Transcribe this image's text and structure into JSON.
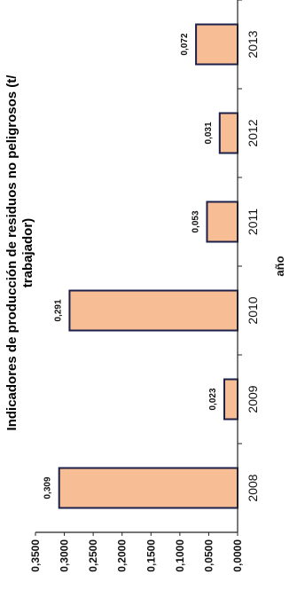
{
  "chart_data": {
    "type": "bar",
    "title": "Indicadores de producción de residuos no peligrosos (t/ trabajador)",
    "title_lines": [
      "Indicadores de producción de residuos no peligrosos (t/",
      "trabajador)"
    ],
    "xlabel": "año",
    "ylabel": "",
    "categories": [
      "2008",
      "2009",
      "2010",
      "2011",
      "2012",
      "2013"
    ],
    "values": [
      0.309,
      0.023,
      0.291,
      0.053,
      0.031,
      0.072
    ],
    "value_labels": [
      "0,309",
      "0,023",
      "0,291",
      "0,053",
      "0,031",
      "0,072"
    ],
    "y_ticks": [
      "0,0000",
      "0,0500",
      "0,1000",
      "0,1500",
      "0,2000",
      "0,2500",
      "0,3000",
      "0,3500"
    ],
    "ylim": [
      0,
      0.35
    ],
    "grid": false,
    "legend": "none",
    "orientation": "rotated 90° counter-clockwise",
    "colors": {
      "bar_fill": "#F7BE96",
      "bar_stroke": "#1B1F4A"
    }
  }
}
